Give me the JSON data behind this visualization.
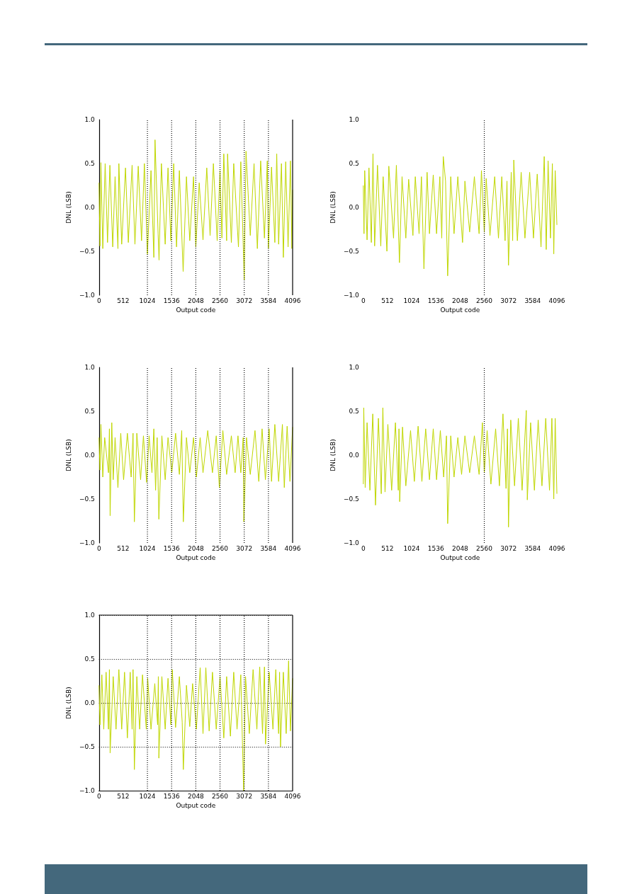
{
  "chart_data": [
    {
      "type": "line",
      "xlabel": "Output code",
      "ylabel": "DNL (LSB)",
      "color": "#bfd600",
      "marker": "none",
      "grid": false,
      "xlim": [
        0,
        4096
      ],
      "xticks": [
        0,
        512,
        1024,
        1536,
        2048,
        2560,
        3072,
        3584,
        4096
      ],
      "ylim": [
        -1,
        1
      ],
      "yticks": [
        {
          "value": -1,
          "label": "−1.0"
        },
        {
          "value": -0.5,
          "label": "−0.5"
        },
        {
          "value": 0,
          "label": "0.0"
        },
        {
          "value": 0.5,
          "label": "0.5"
        },
        {
          "value": 1,
          "label": "1.0"
        }
      ],
      "ref_lines": [
        {
          "axis": "x",
          "value": 1024,
          "color": "#000000",
          "line_style": "dotted"
        },
        {
          "axis": "x",
          "value": 1536,
          "color": "#000000",
          "line_style": "dotted"
        },
        {
          "axis": "x",
          "value": 2048,
          "color": "#000000",
          "line_style": "dotted"
        },
        {
          "axis": "x",
          "value": 2560,
          "color": "#000000",
          "line_style": "dotted"
        },
        {
          "axis": "x",
          "value": 3072,
          "color": "#000000",
          "line_style": "dotted"
        },
        {
          "axis": "x",
          "value": 3584,
          "color": "#000000",
          "line_style": "dotted"
        },
        {
          "axis": "x",
          "value": 4096,
          "color": "#000000",
          "line_style": "solid"
        }
      ],
      "x": [
        0,
        20,
        40,
        80,
        130,
        180,
        230,
        290,
        340,
        400,
        420,
        480,
        560,
        620,
        700,
        760,
        830,
        900,
        960,
        1024,
        1100,
        1160,
        1185,
        1250,
        1270,
        1320,
        1400,
        1460,
        1520,
        1580,
        1640,
        1700,
        1780,
        1850,
        1920,
        2000,
        2048,
        2120,
        2200,
        2280,
        2350,
        2420,
        2500,
        2560,
        2600,
        2640,
        2700,
        2720,
        2800,
        2850,
        2950,
        3000,
        3072,
        3110,
        3200,
        3280,
        3350,
        3420,
        3500,
        3560,
        3584,
        3650,
        3720,
        3760,
        3800,
        3860,
        3900,
        3950,
        4000,
        4050,
        4080,
        4096
      ],
      "values": [
        0.28,
        -0.44,
        0.51,
        -0.47,
        0.5,
        -0.4,
        0.48,
        -0.45,
        0.35,
        -0.47,
        0.5,
        -0.42,
        0.45,
        -0.4,
        0.48,
        -0.42,
        0.47,
        -0.38,
        0.5,
        -0.53,
        0.42,
        -0.57,
        0.77,
        -0.3,
        -0.6,
        0.5,
        -0.42,
        0.45,
        -0.38,
        0.5,
        -0.45,
        0.42,
        -0.73,
        0.35,
        -0.38,
        0.35,
        -0.45,
        0.28,
        -0.37,
        0.45,
        -0.32,
        0.5,
        -0.38,
        0.42,
        -0.35,
        0.61,
        -0.38,
        0.61,
        -0.4,
        0.5,
        -0.45,
        0.52,
        -0.83,
        0.64,
        -0.32,
        0.5,
        -0.47,
        0.53,
        -0.35,
        0.53,
        -0.47,
        0.46,
        -0.4,
        0.61,
        -0.42,
        0.5,
        -0.57,
        0.52,
        -0.45,
        0.53,
        -0.47,
        0.2
      ]
    },
    {
      "type": "line",
      "xlabel": "Output code",
      "ylabel": "DNL (LSB)",
      "color": "#bfd600",
      "marker": "none",
      "grid": false,
      "xlim": [
        0,
        4096
      ],
      "xticks": [
        0,
        512,
        1024,
        1536,
        2048,
        2560,
        3072,
        3584,
        4096
      ],
      "ylim": [
        -1,
        1
      ],
      "yticks": [
        {
          "value": -1,
          "label": "−1.0"
        },
        {
          "value": -0.5,
          "label": "−0.5"
        },
        {
          "value": 0,
          "label": "0.0"
        },
        {
          "value": 0.5,
          "label": "0.5"
        },
        {
          "value": 1,
          "label": "1.0"
        }
      ],
      "ref_lines": [
        {
          "axis": "x",
          "value": 2560,
          "color": "#000000",
          "line_style": "dotted"
        }
      ],
      "x": [
        0,
        15,
        30,
        80,
        120,
        170,
        205,
        240,
        300,
        370,
        420,
        500,
        540,
        640,
        700,
        765,
        820,
        900,
        960,
        1050,
        1100,
        1180,
        1230,
        1283,
        1350,
        1400,
        1480,
        1550,
        1620,
        1660,
        1692,
        1740,
        1785,
        1850,
        1920,
        2000,
        2100,
        2150,
        2250,
        2350,
        2450,
        2500,
        2560,
        2600,
        2680,
        2780,
        2860,
        2930,
        3000,
        3040,
        3072,
        3130,
        3160,
        3184,
        3260,
        3340,
        3420,
        3520,
        3600,
        3680,
        3760,
        3828,
        3870,
        3910,
        3960,
        4000,
        4030,
        4060,
        4096
      ],
      "values": [
        0.25,
        -0.3,
        0.42,
        -0.37,
        0.45,
        -0.4,
        0.61,
        -0.44,
        0.48,
        -0.44,
        0.35,
        -0.5,
        0.47,
        -0.35,
        0.48,
        -0.63,
        0.35,
        -0.35,
        0.32,
        -0.32,
        0.35,
        -0.3,
        0.35,
        -0.7,
        0.4,
        -0.3,
        0.37,
        -0.3,
        0.35,
        -0.35,
        0.58,
        0.3,
        -0.78,
        0.35,
        -0.3,
        0.35,
        -0.4,
        0.3,
        -0.28,
        0.35,
        -0.3,
        0.42,
        -0.28,
        0.33,
        -0.32,
        0.35,
        -0.35,
        0.35,
        -0.38,
        0.3,
        -0.66,
        0.4,
        -0.38,
        0.54,
        -0.38,
        0.4,
        -0.35,
        0.4,
        -0.35,
        0.38,
        -0.45,
        0.58,
        -0.48,
        0.53,
        -0.35,
        0.5,
        -0.53,
        0.42,
        -0.2
      ]
    },
    {
      "type": "line",
      "xlabel": "Output code",
      "ylabel": "DNL (LSB)",
      "color": "#bfd600",
      "marker": "none",
      "grid": false,
      "xlim": [
        0,
        4096
      ],
      "xticks": [
        0,
        512,
        1024,
        1536,
        2048,
        2560,
        3072,
        3584,
        4096
      ],
      "ylim": [
        -1,
        1
      ],
      "yticks": [
        {
          "value": -1,
          "label": "−1.0"
        },
        {
          "value": -0.5,
          "label": "−0.5"
        },
        {
          "value": 0,
          "label": "0.0"
        },
        {
          "value": 0.5,
          "label": "0.5"
        },
        {
          "value": 1,
          "label": "1.0"
        }
      ],
      "ref_lines": [
        {
          "axis": "x",
          "value": 1024,
          "color": "#000000",
          "line_style": "dotted"
        },
        {
          "axis": "x",
          "value": 1536,
          "color": "#000000",
          "line_style": "dotted"
        },
        {
          "axis": "x",
          "value": 2048,
          "color": "#000000",
          "line_style": "dotted"
        },
        {
          "axis": "x",
          "value": 2560,
          "color": "#000000",
          "line_style": "dotted"
        },
        {
          "axis": "x",
          "value": 3072,
          "color": "#000000",
          "line_style": "dotted"
        },
        {
          "axis": "x",
          "value": 3584,
          "color": "#000000",
          "line_style": "dotted"
        },
        {
          "axis": "x",
          "value": 4096,
          "color": "#000000",
          "line_style": "solid"
        }
      ],
      "x": [
        0,
        20,
        40,
        80,
        120,
        200,
        220,
        235,
        270,
        300,
        340,
        400,
        460,
        520,
        600,
        680,
        720,
        748,
        800,
        880,
        940,
        1006,
        1060,
        1120,
        1160,
        1197,
        1230,
        1266,
        1330,
        1400,
        1460,
        1540,
        1620,
        1700,
        1750,
        1784,
        1850,
        1920,
        2000,
        2060,
        2140,
        2200,
        2300,
        2400,
        2480,
        2546,
        2620,
        2700,
        2800,
        2880,
        2940,
        3000,
        3050,
        3064,
        3120,
        3200,
        3300,
        3380,
        3450,
        3520,
        3600,
        3650,
        3720,
        3800,
        3880,
        3920,
        3980,
        4040,
        4096
      ],
      "values": [
        0.2,
        -0.17,
        0.35,
        -0.25,
        0.2,
        -0.2,
        0.3,
        -0.69,
        0.37,
        -0.28,
        0.2,
        -0.37,
        0.25,
        -0.28,
        0.25,
        -0.25,
        0.25,
        -0.76,
        0.25,
        -0.28,
        0.22,
        -0.31,
        0.22,
        -0.2,
        0.3,
        -0.4,
        0.2,
        -0.73,
        0.22,
        -0.28,
        0.2,
        -0.2,
        0.25,
        -0.22,
        0.28,
        -0.76,
        0.2,
        -0.2,
        0.2,
        -0.25,
        0.2,
        -0.2,
        0.28,
        -0.2,
        0.22,
        -0.37,
        0.28,
        -0.22,
        0.22,
        -0.2,
        0.22,
        -0.2,
        0.2,
        -0.76,
        0.2,
        -0.22,
        0.28,
        -0.3,
        0.3,
        -0.28,
        0.3,
        -0.3,
        0.35,
        -0.3,
        0.35,
        -0.37,
        0.33,
        -0.3,
        0.32
      ]
    },
    {
      "type": "line",
      "xlabel": "Output code",
      "ylabel": "DNL (LSB)",
      "color": "#bfd600",
      "marker": "none",
      "grid": false,
      "xlim": [
        0,
        4096
      ],
      "xticks": [
        0,
        512,
        1024,
        1536,
        2048,
        2560,
        3072,
        3584,
        4096
      ],
      "ylim": [
        -1,
        1
      ],
      "yticks": [
        {
          "value": -1,
          "label": "−1.0"
        },
        {
          "value": -0.5,
          "label": "−0.5"
        },
        {
          "value": 0,
          "label": "0.0"
        },
        {
          "value": 0.5,
          "label": "0.5"
        },
        {
          "value": 1,
          "label": "1.0"
        }
      ],
      "ref_lines": [
        {
          "axis": "x",
          "value": 2560,
          "color": "#000000",
          "line_style": "dotted"
        }
      ],
      "x": [
        0,
        10,
        40,
        80,
        140,
        200,
        258,
        320,
        380,
        414,
        460,
        520,
        600,
        680,
        740,
        755,
        770,
        830,
        900,
        1000,
        1080,
        1160,
        1240,
        1320,
        1400,
        1480,
        1550,
        1630,
        1700,
        1760,
        1785,
        1850,
        1920,
        2000,
        2080,
        2150,
        2250,
        2350,
        2450,
        2520,
        2560,
        2620,
        2700,
        2800,
        2880,
        2955,
        3020,
        3050,
        3072,
        3120,
        3200,
        3280,
        3360,
        3448,
        3470,
        3540,
        3620,
        3700,
        3780,
        3860,
        3940,
        3990,
        4030,
        4060,
        4096
      ],
      "values": [
        -0.33,
        0.54,
        -0.37,
        0.37,
        -0.4,
        0.47,
        -0.57,
        0.42,
        -0.44,
        0.54,
        -0.42,
        0.35,
        -0.4,
        0.37,
        -0.4,
        0.3,
        -0.53,
        0.32,
        -0.35,
        0.28,
        -0.3,
        0.33,
        -0.3,
        0.3,
        -0.28,
        0.3,
        -0.28,
        0.28,
        -0.25,
        0.22,
        -0.78,
        0.22,
        -0.25,
        0.2,
        -0.22,
        0.22,
        -0.2,
        0.22,
        -0.22,
        0.37,
        -0.2,
        0.28,
        -0.33,
        0.3,
        -0.35,
        0.47,
        -0.38,
        0.3,
        -0.82,
        0.4,
        -0.35,
        0.42,
        -0.4,
        0.51,
        -0.51,
        0.37,
        -0.4,
        0.4,
        -0.35,
        0.42,
        -0.4,
        0.42,
        -0.5,
        0.42,
        -0.44
      ]
    },
    {
      "type": "line",
      "xlabel": "Output code",
      "ylabel": "DNL (LSB)",
      "color": "#bfd600",
      "marker": "none",
      "grid": "y",
      "xlim": [
        0,
        4096
      ],
      "xticks": [
        0,
        512,
        1024,
        1536,
        2048,
        2560,
        3072,
        3584,
        4096
      ],
      "ylim": [
        -1,
        1
      ],
      "yticks": [
        {
          "value": -1,
          "label": "−1.0"
        },
        {
          "value": -0.5,
          "label": "−0.5"
        },
        {
          "value": 0,
          "label": "0.0"
        },
        {
          "value": 0.5,
          "label": "0.5"
        },
        {
          "value": 1,
          "label": "1.0"
        }
      ],
      "ref_lines": [
        {
          "axis": "x",
          "value": 1024,
          "color": "#000000",
          "line_style": "dotted"
        },
        {
          "axis": "x",
          "value": 1536,
          "color": "#000000",
          "line_style": "dotted"
        },
        {
          "axis": "x",
          "value": 2048,
          "color": "#000000",
          "line_style": "dotted"
        },
        {
          "axis": "x",
          "value": 2560,
          "color": "#000000",
          "line_style": "dotted"
        },
        {
          "axis": "x",
          "value": 3072,
          "color": "#000000",
          "line_style": "dotted"
        },
        {
          "axis": "x",
          "value": 3584,
          "color": "#000000",
          "line_style": "dotted"
        },
        {
          "axis": "x",
          "value": 4096,
          "color": "#000000",
          "line_style": "solid"
        },
        {
          "axis": "y",
          "value": 1,
          "color": "#000000",
          "line_style": "solid"
        }
      ],
      "x": [
        0,
        20,
        60,
        100,
        150,
        200,
        220,
        235,
        300,
        360,
        420,
        480,
        540,
        600,
        660,
        700,
        720,
        748,
        800,
        860,
        920,
        1000,
        1030,
        1100,
        1180,
        1240,
        1255,
        1266,
        1330,
        1400,
        1460,
        1520,
        1550,
        1620,
        1700,
        1760,
        1784,
        1850,
        1920,
        1980,
        2060,
        2140,
        2200,
        2260,
        2330,
        2400,
        2480,
        2560,
        2640,
        2700,
        2780,
        2850,
        2920,
        3000,
        3059,
        3100,
        3180,
        3260,
        3340,
        3400,
        3460,
        3500,
        3523,
        3600,
        3680,
        3740,
        3800,
        3820,
        3840,
        3900,
        3960,
        4011,
        4050,
        4096
      ],
      "values": [
        0.2,
        -0.25,
        0.32,
        -0.3,
        0.35,
        -0.3,
        0.38,
        -0.57,
        0.3,
        -0.3,
        0.38,
        -0.3,
        0.35,
        -0.4,
        0.35,
        -0.3,
        0.38,
        -0.76,
        0.3,
        -0.3,
        0.32,
        -0.3,
        0.28,
        -0.3,
        0.22,
        -0.25,
        0.3,
        -0.63,
        0.3,
        -0.3,
        0.28,
        -0.25,
        0.38,
        -0.28,
        0.3,
        -0.22,
        -0.76,
        0.2,
        -0.27,
        0.22,
        -0.3,
        0.4,
        -0.35,
        0.4,
        -0.32,
        0.35,
        -0.3,
        0.3,
        -0.4,
        0.3,
        -0.38,
        0.35,
        -0.3,
        0.32,
        -1.0,
        0.3,
        -0.35,
        0.38,
        -0.3,
        0.41,
        -0.35,
        0.41,
        -0.47,
        0.35,
        -0.3,
        0.38,
        -0.35,
        0.35,
        -0.5,
        0.35,
        -0.35,
        0.48,
        -0.32,
        0.28
      ]
    }
  ]
}
